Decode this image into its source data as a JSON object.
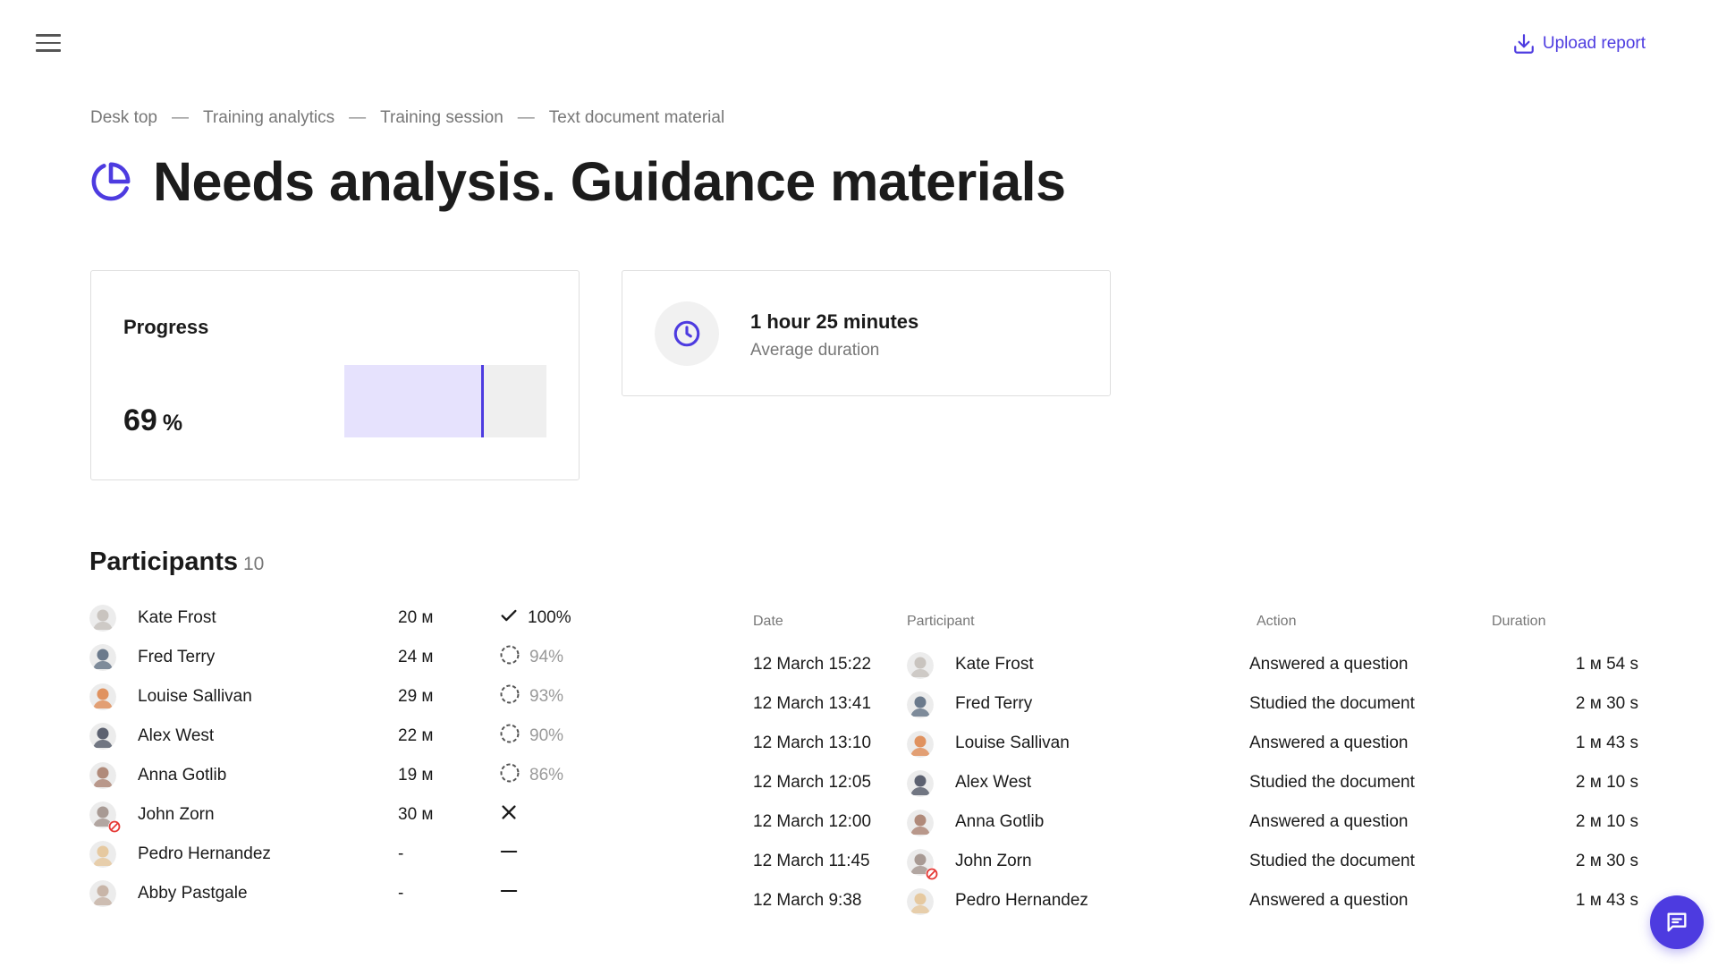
{
  "header": {
    "menu_icon": "hamburger-menu-icon",
    "upload_label": "Upload report",
    "upload_icon": "download-tray-icon"
  },
  "breadcrumb": [
    "Desk top",
    "Training analytics",
    "Training session",
    "Text document material"
  ],
  "breadcrumb_separator": "—",
  "title": "Needs analysis. Guidance materials",
  "title_icon": "pie-chart-icon",
  "accent_color": "#4d3be0",
  "progress": {
    "label": "Progress",
    "value": "69",
    "unit": "%",
    "fraction": 0.69
  },
  "duration": {
    "value": "1 hour 25 minutes",
    "label": "Average duration",
    "icon": "clock-icon"
  },
  "participants": {
    "title": "Participants",
    "count": "10",
    "rows": [
      {
        "name": "Kate Frost",
        "time": "20 м",
        "status": "done",
        "percent": "100%",
        "avatar_color": "#c9c4bf",
        "banned": false
      },
      {
        "name": "Fred Terry",
        "time": "24 м",
        "status": "partial",
        "percent": "94%",
        "avatar_color": "#6b7a8c",
        "banned": false
      },
      {
        "name": "Louise Sallivan",
        "time": "29 м",
        "status": "partial",
        "percent": "93%",
        "avatar_color": "#e0925f",
        "banned": false
      },
      {
        "name": "Alex West",
        "time": "22 м",
        "status": "partial",
        "percent": "90%",
        "avatar_color": "#5c6170",
        "banned": false
      },
      {
        "name": "Anna Gotlib",
        "time": "19 м",
        "status": "partial",
        "percent": "86%",
        "avatar_color": "#b08a7a",
        "banned": false
      },
      {
        "name": "John Zorn",
        "time": "30 м",
        "status": "failed",
        "percent": "",
        "avatar_color": "#a89a94",
        "banned": true
      },
      {
        "name": "Pedro Hernandez",
        "time": "-",
        "status": "none",
        "percent": "",
        "avatar_color": "#e6c9a0",
        "banned": false
      },
      {
        "name": "Abby Pastgale",
        "time": "-",
        "status": "none",
        "percent": "",
        "avatar_color": "#c8b5a8",
        "banned": false
      }
    ]
  },
  "activity": {
    "columns": [
      "Date",
      "Participant",
      "Action",
      "Duration"
    ],
    "rows": [
      {
        "date": "12 March 15:22",
        "participant": "Kate Frost",
        "action": "Answered a question",
        "duration": "1 м 54 s",
        "avatar_color": "#c9c4bf",
        "banned": false
      },
      {
        "date": "12 March 13:41",
        "participant": "Fred Terry",
        "action": "Studied the document",
        "duration": "2 м 30 s",
        "avatar_color": "#6b7a8c",
        "banned": false
      },
      {
        "date": "12 March 13:10",
        "participant": "Louise Sallivan",
        "action": "Answered a question",
        "duration": "1 м 43 s",
        "avatar_color": "#e0925f",
        "banned": false
      },
      {
        "date": "12 March 12:05",
        "participant": "Alex West",
        "action": "Studied the document",
        "duration": "2 м 10 s",
        "avatar_color": "#5c6170",
        "banned": false
      },
      {
        "date": "12 March 12:00",
        "participant": "Anna Gotlib",
        "action": "Answered a question",
        "duration": "2 м 10 s",
        "avatar_color": "#b08a7a",
        "banned": false
      },
      {
        "date": "12 March 11:45",
        "participant": "John Zorn",
        "action": "Studied the document",
        "duration": "2 м 30 s",
        "avatar_color": "#a89a94",
        "banned": true
      },
      {
        "date": "12 March 9:38",
        "participant": "Pedro Hernandez",
        "action": "Answered a question",
        "duration": "1 м 43 s",
        "avatar_color": "#e6c9a0",
        "banned": false
      }
    ]
  },
  "chat_icon": "chat-bubble-icon"
}
